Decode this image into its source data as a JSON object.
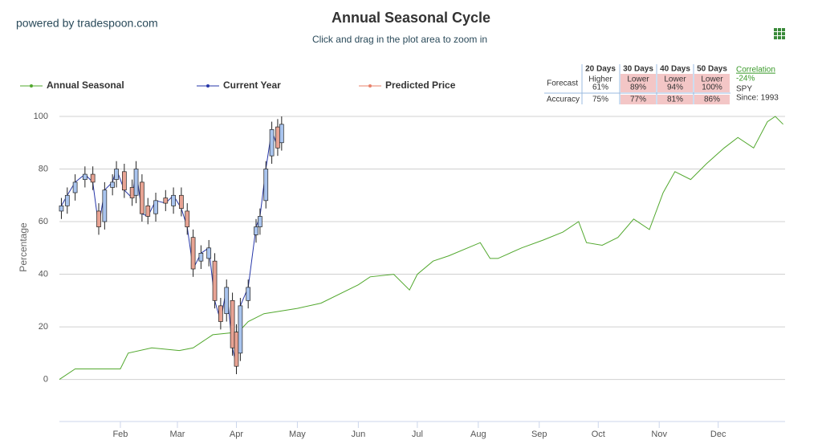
{
  "chart_data": {
    "type": "seasonal-candlestick",
    "credit": "powered by tradespoon.com",
    "title": "Annual Seasonal Cycle",
    "subtitle": "Click and drag in the plot area to zoom in",
    "y_label": "Percentage",
    "xlim": [
      1,
      370
    ],
    "xticks": [
      {
        "value": 32,
        "label": "Feb"
      },
      {
        "value": 61,
        "label": "Mar"
      },
      {
        "value": 91,
        "label": "Apr"
      },
      {
        "value": 122,
        "label": "May"
      },
      {
        "value": 153,
        "label": "Jun"
      },
      {
        "value": 183,
        "label": "Jul"
      },
      {
        "value": 214,
        "label": "Aug"
      },
      {
        "value": 245,
        "label": "Sep"
      },
      {
        "value": 275,
        "label": "Oct"
      },
      {
        "value": 306,
        "label": "Nov"
      },
      {
        "value": 336,
        "label": "Dec"
      }
    ],
    "ylim": [
      -16,
      100
    ],
    "yticks": [
      0,
      20,
      40,
      60,
      80,
      100
    ],
    "grid": true,
    "series": [
      {
        "name": "Annual Seasonal",
        "color": "#52a82e",
        "x": [
          1,
          9,
          20,
          32,
          36,
          48,
          62,
          69,
          79,
          92,
          97,
          105,
          122,
          134,
          153,
          159,
          171,
          179,
          183,
          191,
          199,
          215,
          220,
          224,
          236,
          247,
          257,
          265,
          269,
          277,
          285,
          293,
          301,
          308,
          314,
          322,
          330,
          339,
          346,
          354,
          361,
          365,
          369
        ],
        "values": [
          0,
          4,
          4,
          4,
          10,
          12,
          11,
          12,
          17,
          18,
          22,
          25,
          27,
          29,
          36,
          39,
          40,
          34,
          40,
          45,
          47,
          52,
          46,
          46,
          50,
          53,
          56,
          60,
          52,
          51,
          54,
          61,
          57,
          71,
          79,
          76,
          82,
          88,
          92,
          88,
          98,
          100,
          97
        ]
      },
      {
        "name": "Current Year",
        "color": "#2636a8",
        "up_color": "#a9c4ee",
        "down_color": "#e8a393",
        "x": [
          2,
          5,
          9,
          14,
          18,
          21,
          24,
          28,
          30,
          34,
          38,
          40,
          43,
          46,
          50,
          55,
          59,
          63,
          66,
          69,
          73,
          77,
          80,
          83,
          86,
          89,
          91,
          93,
          97,
          101,
          103,
          106,
          109,
          112,
          114
        ],
        "values": [
          66,
          70,
          75,
          78,
          75,
          58,
          72,
          75,
          80,
          72,
          69,
          80,
          63,
          62,
          68,
          67,
          70,
          65,
          58,
          42,
          48,
          50,
          30,
          22,
          35,
          12,
          5,
          28,
          35,
          58,
          62,
          80,
          95,
          88,
          97
        ],
        "open": [
          64,
          66,
          71,
          76,
          78,
          64,
          60,
          73,
          76,
          79,
          73,
          70,
          75,
          66,
          63,
          69,
          66,
          70,
          64,
          54,
          45,
          46,
          45,
          28,
          25,
          30,
          18,
          10,
          30,
          55,
          58,
          68,
          85,
          96,
          90
        ],
        "high": [
          69,
          73,
          78,
          81,
          81,
          67,
          75,
          78,
          83,
          82,
          76,
          83,
          78,
          69,
          71,
          72,
          73,
          73,
          67,
          57,
          51,
          53,
          48,
          31,
          38,
          33,
          21,
          31,
          38,
          61,
          65,
          83,
          98,
          99,
          100
        ],
        "low": [
          61,
          63,
          68,
          73,
          72,
          55,
          57,
          70,
          73,
          69,
          66,
          67,
          60,
          59,
          60,
          64,
          63,
          62,
          55,
          39,
          42,
          43,
          27,
          19,
          22,
          9,
          2,
          7,
          27,
          52,
          55,
          65,
          82,
          85,
          87
        ]
      },
      {
        "name": "Predicted Price",
        "color": "#e8806a"
      }
    ],
    "forecast_table": {
      "columns": [
        "20 Days",
        "30 Days",
        "40 Days",
        "50 Days"
      ],
      "forecast_label": "Forecast",
      "forecast": [
        {
          "direction": "Higher",
          "pct": "61%"
        },
        {
          "direction": "Lower",
          "pct": "89%"
        },
        {
          "direction": "Lower",
          "pct": "94%"
        },
        {
          "direction": "Lower",
          "pct": "100%"
        }
      ],
      "accuracy_label": "Accuracy",
      "accuracy": [
        "75%",
        "77%",
        "81%",
        "86%"
      ],
      "lower_color": "#f3c6c6"
    },
    "correlation": {
      "label": "Correlation",
      "value": "-24%",
      "symbol": "SPY",
      "since": "Since: 1993"
    }
  }
}
